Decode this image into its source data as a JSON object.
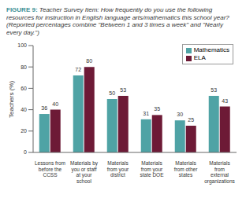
{
  "chart_data": {
    "type": "bar",
    "title": "FIGURE 9: Teacher Survey Item: How frequently do you use the following resources for instruction in English language arts/mathematics this school year? (Reported percentages combine \"Between 1 and 3 times a week\" and \"Nearly every day.\")",
    "y_label": "Teachers (%)",
    "categories": [
      "Lessons from before the CCSS",
      "Materials by you or staff at your school",
      "Materials from your district",
      "Materials from your state DOE",
      "Materials from other states",
      "Materials from external organizations"
    ],
    "series": [
      {
        "name": "Mathematics",
        "color": "#4fa3a5",
        "values": [
          36,
          72,
          50,
          31,
          30,
          53
        ]
      },
      {
        "name": "ELA",
        "color": "#6d1a36",
        "values": [
          40,
          80,
          53,
          35,
          25,
          43
        ]
      }
    ],
    "ylim": [
      0,
      100
    ],
    "yticks": [
      0,
      20,
      40,
      60,
      80,
      100
    ],
    "data_labels": true,
    "legend": "upper right",
    "grid": false
  }
}
